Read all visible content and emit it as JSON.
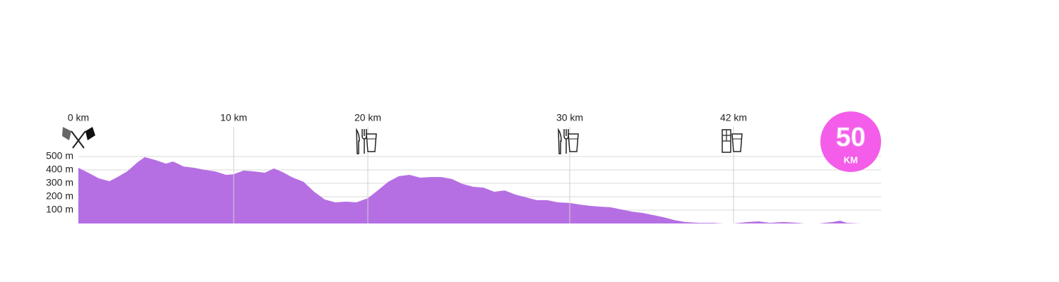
{
  "chart_data": {
    "type": "area",
    "color": "#b56fe3",
    "x": [
      0,
      0.64,
      1.32,
      2.0,
      2.45,
      3.14,
      3.82,
      4.27,
      4.95,
      5.64,
      6.09,
      6.77,
      7.45,
      8.14,
      8.82,
      9.5,
      10,
      10.74,
      11.53,
      12.32,
      13.0,
      13.63,
      14.42,
      15.21,
      16.0,
      16.79,
      17.58,
      18.37,
      19.16,
      20,
      20.49,
      21.01,
      21.54,
      22.06,
      22.59,
      23.11,
      23.64,
      24.16,
      24.69,
      25.21,
      25.73,
      26.26,
      26.78,
      27.31,
      27.83,
      28.36,
      28.88,
      29.41,
      30,
      30.67,
      31.45,
      32.22,
      33.0,
      33.78,
      34.55,
      35.33,
      36.1,
      36.88,
      37.66,
      38.43,
      39.47,
      40.5,
      41.28,
      42,
      42.8,
      43.38,
      43.95,
      44.71,
      45.48,
      45.86,
      46.62,
      47.39,
      47.77,
      48.15,
      48.92,
      49.3
    ],
    "values": [
      416,
      379,
      337,
      316,
      342,
      389,
      458,
      495,
      474,
      447,
      463,
      426,
      416,
      400,
      389,
      363,
      368,
      395,
      389,
      379,
      411,
      384,
      342,
      311,
      237,
      179,
      158,
      163,
      158,
      189,
      247,
      311,
      353,
      363,
      342,
      347,
      347,
      332,
      295,
      274,
      268,
      237,
      247,
      216,
      195,
      174,
      174,
      158,
      153,
      142,
      132,
      126,
      121,
      105,
      89,
      79,
      63,
      47,
      26,
      11,
      5,
      5,
      0,
      0,
      11,
      16,
      5,
      11,
      5,
      0,
      0,
      11,
      21,
      5,
      0,
      0
    ],
    "xlim": [
      0,
      50
    ],
    "xticks": [
      {
        "value": 0,
        "label": "0 km"
      },
      {
        "value": 10,
        "label": "10 km"
      },
      {
        "value": 20,
        "label": "20 km"
      },
      {
        "value": 30,
        "label": "30 km"
      },
      {
        "value": 42,
        "label": "42 km"
      }
    ],
    "ylim": [
      0,
      500
    ],
    "yticks": [
      {
        "value": 100,
        "label": "100 m"
      },
      {
        "value": 200,
        "label": "200 m"
      },
      {
        "value": 300,
        "label": "300 m"
      },
      {
        "value": 400,
        "label": "400 m"
      },
      {
        "value": 500,
        "label": "500 m"
      }
    ],
    "grid": true,
    "badge": {
      "distance": 50,
      "unit": "KM",
      "color": "#f35de9"
    }
  }
}
